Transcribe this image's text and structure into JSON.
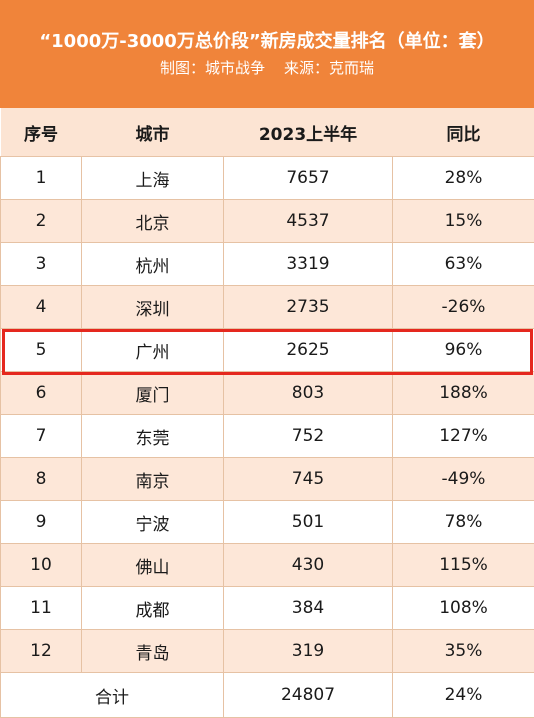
{
  "header": {
    "title": "“1000万-3000万总价段”新房成交量排名（单位：套）",
    "subtitle": "制图：城市战争    来源：克而瑞"
  },
  "table": {
    "columns": [
      "序号",
      "城市",
      "2023上半年",
      "同比"
    ],
    "rows": [
      [
        "1",
        "上海",
        "7657",
        "28%"
      ],
      [
        "2",
        "北京",
        "4537",
        "15%"
      ],
      [
        "3",
        "杭州",
        "3319",
        "63%"
      ],
      [
        "4",
        "深圳",
        "2735",
        "-26%"
      ],
      [
        "5",
        "广州",
        "2625",
        "96%"
      ],
      [
        "6",
        "厦门",
        "803",
        "188%"
      ],
      [
        "7",
        "东莞",
        "752",
        "127%"
      ],
      [
        "8",
        "南京",
        "745",
        "-49%"
      ],
      [
        "9",
        "宁波",
        "501",
        "78%"
      ],
      [
        "10",
        "佛山",
        "430",
        "115%"
      ],
      [
        "11",
        "成都",
        "384",
        "108%"
      ],
      [
        "12",
        "青岛",
        "319",
        "35%"
      ]
    ],
    "total": {
      "label": "合计",
      "value": "24807",
      "yoy": "24%"
    },
    "highlighted_rank": "5"
  },
  "colors": {
    "header_background": "#f0843a",
    "row_alt_background": "#fde7d8",
    "highlight_border": "#e5281e"
  }
}
